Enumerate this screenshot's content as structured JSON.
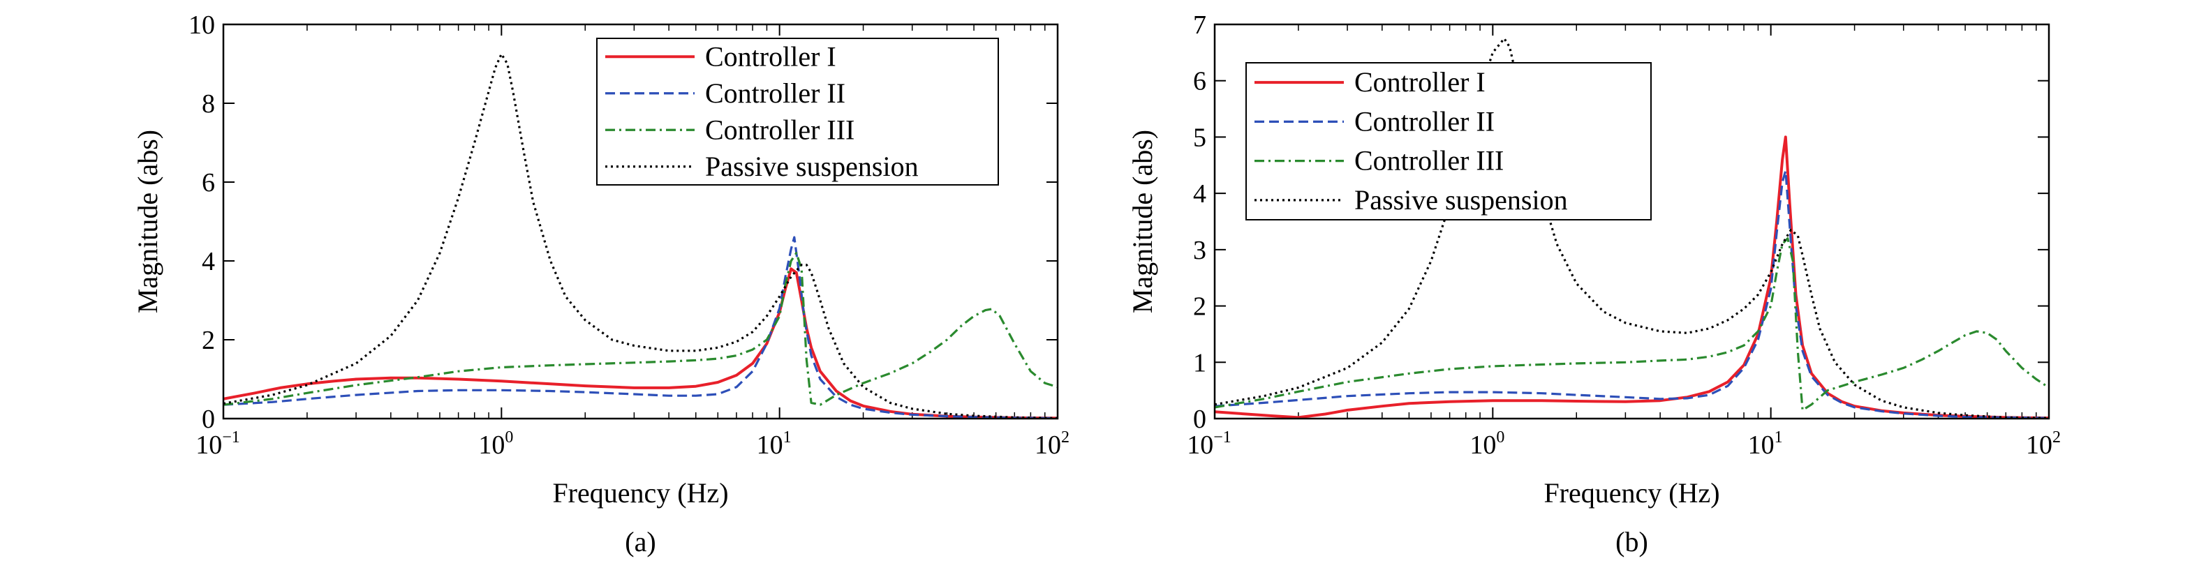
{
  "chart_data": [
    {
      "type": "line",
      "caption": "(a)",
      "xlabel": "Frequency (Hz)",
      "ylabel": "Magnitude (abs)",
      "xscale": "log",
      "xlim": [
        0.1,
        100
      ],
      "ylim": [
        0,
        10
      ],
      "yticks": [
        0,
        2,
        4,
        6,
        8,
        10
      ],
      "xticks": [
        {
          "base": "10",
          "exp": "−1"
        },
        {
          "base": "10",
          "exp": "0"
        },
        {
          "base": "10",
          "exp": "1"
        },
        {
          "base": "10",
          "exp": "2"
        }
      ],
      "legend_position": "top-right",
      "series": [
        {
          "name": "Controller I",
          "color": "#e8202a",
          "style": "solid",
          "x": [
            0.1,
            0.13,
            0.16,
            0.2,
            0.25,
            0.3,
            0.4,
            0.5,
            0.7,
            1.0,
            1.5,
            2.0,
            3.0,
            4.0,
            5.0,
            6.0,
            7.0,
            8.0,
            9.0,
            10.0,
            10.5,
            11.0,
            11.5,
            12.0,
            12.5,
            13.0,
            14.0,
            16.0,
            18.0,
            20.0,
            25.0,
            30.0,
            40.0,
            50.0,
            70.0,
            100.0
          ],
          "y": [
            0.5,
            0.65,
            0.78,
            0.88,
            0.95,
            1.0,
            1.03,
            1.03,
            1.0,
            0.95,
            0.88,
            0.83,
            0.78,
            0.78,
            0.82,
            0.92,
            1.1,
            1.4,
            1.9,
            2.7,
            3.3,
            3.8,
            3.7,
            3.0,
            2.3,
            1.8,
            1.2,
            0.7,
            0.45,
            0.32,
            0.18,
            0.11,
            0.06,
            0.04,
            0.02,
            0.01
          ]
        },
        {
          "name": "Controller II",
          "color": "#2d4fb8",
          "style": "dashed",
          "x": [
            0.1,
            0.15,
            0.2,
            0.3,
            0.5,
            0.7,
            1.0,
            1.5,
            2.0,
            3.0,
            4.0,
            5.0,
            6.0,
            7.0,
            8.0,
            9.0,
            10.0,
            10.5,
            11.0,
            11.3,
            11.8,
            12.3,
            13.0,
            14.0,
            16.0,
            18.0,
            20.0,
            25.0,
            30.0,
            40.0,
            50.0,
            70.0,
            100.0
          ],
          "y": [
            0.35,
            0.42,
            0.5,
            0.6,
            0.7,
            0.72,
            0.72,
            0.7,
            0.67,
            0.62,
            0.58,
            0.58,
            0.62,
            0.8,
            1.2,
            1.9,
            2.8,
            3.6,
            4.3,
            4.6,
            3.6,
            2.5,
            1.6,
            1.0,
            0.55,
            0.35,
            0.25,
            0.15,
            0.1,
            0.06,
            0.04,
            0.02,
            0.01
          ]
        },
        {
          "name": "Controller III",
          "color": "#2a8a2e",
          "style": "dashdot",
          "x": [
            0.1,
            0.15,
            0.2,
            0.3,
            0.5,
            0.7,
            1.0,
            1.5,
            2.0,
            3.0,
            4.0,
            5.0,
            6.0,
            7.0,
            8.0,
            9.0,
            10.0,
            10.5,
            11.0,
            11.5,
            12.0,
            12.5,
            13.0,
            14.0,
            16.0,
            20.0,
            25.0,
            30.0,
            35.0,
            40.0,
            45.0,
            50.0,
            55.0,
            58.0,
            62.0,
            70.0,
            80.0,
            90.0,
            100.0
          ],
          "y": [
            0.35,
            0.5,
            0.65,
            0.85,
            1.05,
            1.2,
            1.3,
            1.35,
            1.38,
            1.42,
            1.45,
            1.48,
            1.52,
            1.6,
            1.75,
            2.0,
            2.6,
            3.4,
            4.0,
            4.2,
            3.8,
            1.5,
            0.4,
            0.35,
            0.6,
            0.9,
            1.15,
            1.4,
            1.7,
            2.0,
            2.35,
            2.6,
            2.75,
            2.78,
            2.6,
            1.9,
            1.2,
            0.9,
            0.8
          ]
        },
        {
          "name": "Passive suspension",
          "color": "#000000",
          "style": "dotted",
          "x": [
            0.1,
            0.15,
            0.2,
            0.3,
            0.4,
            0.5,
            0.6,
            0.7,
            0.8,
            0.9,
            0.95,
            1.0,
            1.05,
            1.1,
            1.2,
            1.3,
            1.5,
            1.7,
            2.0,
            2.5,
            3.0,
            4.0,
            5.0,
            6.0,
            7.0,
            8.0,
            9.0,
            10.0,
            11.0,
            12.0,
            12.5,
            13.0,
            14.0,
            15.0,
            17.0,
            20.0,
            25.0,
            30.0,
            40.0,
            50.0,
            70.0,
            100.0
          ],
          "y": [
            0.38,
            0.6,
            0.85,
            1.4,
            2.1,
            3.0,
            4.2,
            5.6,
            7.0,
            8.3,
            8.9,
            9.25,
            9.0,
            8.3,
            6.8,
            5.5,
            4.0,
            3.1,
            2.5,
            2.0,
            1.85,
            1.72,
            1.72,
            1.8,
            1.95,
            2.2,
            2.6,
            3.1,
            3.6,
            3.9,
            3.9,
            3.7,
            3.0,
            2.3,
            1.4,
            0.8,
            0.4,
            0.25,
            0.12,
            0.07,
            0.03,
            0.01
          ]
        }
      ]
    },
    {
      "type": "line",
      "caption": "(b)",
      "xlabel": "Frequency (Hz)",
      "ylabel": "Magnitude (abs)",
      "xscale": "log",
      "xlim": [
        0.1,
        100
      ],
      "ylim": [
        0,
        7
      ],
      "yticks": [
        0,
        1,
        2,
        3,
        4,
        5,
        6,
        7
      ],
      "xticks": [
        {
          "base": "10",
          "exp": "−1"
        },
        {
          "base": "10",
          "exp": "0"
        },
        {
          "base": "10",
          "exp": "1"
        },
        {
          "base": "10",
          "exp": "2"
        }
      ],
      "legend_position": "top-left",
      "series": [
        {
          "name": "Controller I",
          "color": "#e8202a",
          "style": "solid",
          "x": [
            0.1,
            0.13,
            0.16,
            0.2,
            0.25,
            0.3,
            0.4,
            0.5,
            0.7,
            1.0,
            1.5,
            2.0,
            3.0,
            4.0,
            5.0,
            6.0,
            7.0,
            8.0,
            9.0,
            10.0,
            10.5,
            11.0,
            11.3,
            11.7,
            12.3,
            13.0,
            14.0,
            16.0,
            18.0,
            20.0,
            25.0,
            30.0,
            40.0,
            50.0,
            70.0,
            100.0
          ],
          "y": [
            0.12,
            0.08,
            0.05,
            0.02,
            0.08,
            0.15,
            0.22,
            0.27,
            0.3,
            0.32,
            0.32,
            0.31,
            0.3,
            0.32,
            0.38,
            0.48,
            0.65,
            0.95,
            1.5,
            2.5,
            3.5,
            4.6,
            5.0,
            3.8,
            2.2,
            1.3,
            0.8,
            0.45,
            0.3,
            0.22,
            0.14,
            0.1,
            0.06,
            0.04,
            0.02,
            0.01
          ]
        },
        {
          "name": "Controller II",
          "color": "#2d4fb8",
          "style": "dashed",
          "x": [
            0.1,
            0.15,
            0.2,
            0.3,
            0.5,
            0.7,
            1.0,
            1.5,
            2.0,
            3.0,
            4.0,
            5.0,
            6.0,
            7.0,
            8.0,
            9.0,
            10.0,
            10.5,
            11.0,
            11.3,
            11.7,
            12.3,
            13.0,
            14.0,
            16.0,
            18.0,
            20.0,
            25.0,
            30.0,
            40.0,
            50.0,
            70.0,
            100.0
          ],
          "y": [
            0.22,
            0.28,
            0.33,
            0.4,
            0.45,
            0.47,
            0.47,
            0.45,
            0.42,
            0.38,
            0.35,
            0.36,
            0.42,
            0.58,
            0.9,
            1.4,
            2.3,
            3.3,
            4.2,
            4.4,
            3.4,
            2.0,
            1.2,
            0.75,
            0.42,
            0.28,
            0.2,
            0.13,
            0.09,
            0.05,
            0.03,
            0.02,
            0.01
          ]
        },
        {
          "name": "Controller III",
          "color": "#2a8a2e",
          "style": "dashdot",
          "x": [
            0.1,
            0.15,
            0.2,
            0.3,
            0.5,
            0.7,
            1.0,
            1.5,
            2.0,
            3.0,
            4.0,
            5.0,
            6.0,
            7.0,
            8.0,
            9.0,
            10.0,
            10.5,
            11.0,
            11.5,
            12.0,
            12.5,
            13.0,
            14.0,
            16.0,
            20.0,
            25.0,
            30.0,
            35.0,
            40.0,
            45.0,
            50.0,
            55.0,
            60.0,
            65.0,
            70.0,
            80.0,
            90.0,
            100.0
          ],
          "y": [
            0.2,
            0.35,
            0.48,
            0.65,
            0.8,
            0.88,
            0.93,
            0.96,
            0.98,
            1.0,
            1.03,
            1.05,
            1.1,
            1.18,
            1.3,
            1.55,
            2.0,
            2.6,
            3.1,
            3.2,
            2.8,
            1.2,
            0.15,
            0.25,
            0.5,
            0.65,
            0.78,
            0.9,
            1.05,
            1.2,
            1.35,
            1.48,
            1.55,
            1.52,
            1.4,
            1.2,
            0.9,
            0.7,
            0.55
          ]
        },
        {
          "name": "Passive suspension",
          "color": "#000000",
          "style": "dotted",
          "x": [
            0.1,
            0.15,
            0.2,
            0.3,
            0.4,
            0.5,
            0.6,
            0.7,
            0.8,
            0.9,
            1.0,
            1.1,
            1.15,
            1.2,
            1.3,
            1.5,
            1.7,
            2.0,
            2.5,
            3.0,
            4.0,
            5.0,
            6.0,
            7.0,
            8.0,
            9.0,
            10.0,
            11.0,
            11.8,
            12.5,
            13.0,
            14.0,
            15.0,
            17.0,
            20.0,
            25.0,
            30.0,
            40.0,
            50.0,
            70.0,
            100.0
          ],
          "y": [
            0.25,
            0.4,
            0.55,
            0.9,
            1.35,
            1.95,
            2.8,
            3.8,
            4.8,
            5.8,
            6.5,
            6.75,
            6.6,
            6.2,
            5.3,
            4.0,
            3.1,
            2.4,
            1.9,
            1.7,
            1.55,
            1.52,
            1.6,
            1.75,
            1.95,
            2.2,
            2.6,
            3.1,
            3.35,
            3.25,
            2.9,
            2.2,
            1.6,
            1.0,
            0.6,
            0.32,
            0.2,
            0.1,
            0.06,
            0.02,
            0.01
          ]
        }
      ]
    }
  ]
}
